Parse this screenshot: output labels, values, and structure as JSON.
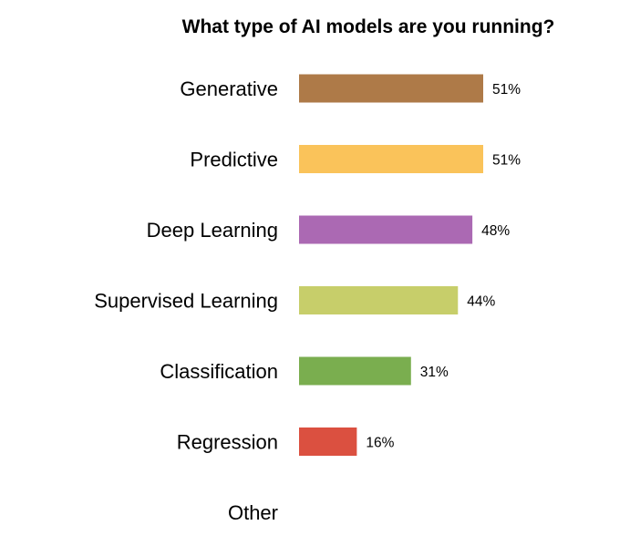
{
  "chart_data": {
    "type": "bar",
    "orientation": "horizontal",
    "title": "What type of AI models are you running?",
    "categories": [
      "Generative",
      "Predictive",
      "Deep Learning",
      "Supervised Learning",
      "Classification",
      "Regression",
      "Other"
    ],
    "values": [
      51,
      51,
      48,
      44,
      31,
      16,
      null
    ],
    "value_labels": [
      "51%",
      "51%",
      "48%",
      "44%",
      "31%",
      "16%",
      ""
    ],
    "colors": [
      "#ae7a48",
      "#fac35a",
      "#ab69b3",
      "#c7ce6a",
      "#7aae4f",
      "#db5040",
      "#ffffff"
    ],
    "xlabel": "",
    "ylabel": "",
    "xlim": [
      0,
      100
    ],
    "unit": "%",
    "grid": false,
    "legend": "none"
  }
}
